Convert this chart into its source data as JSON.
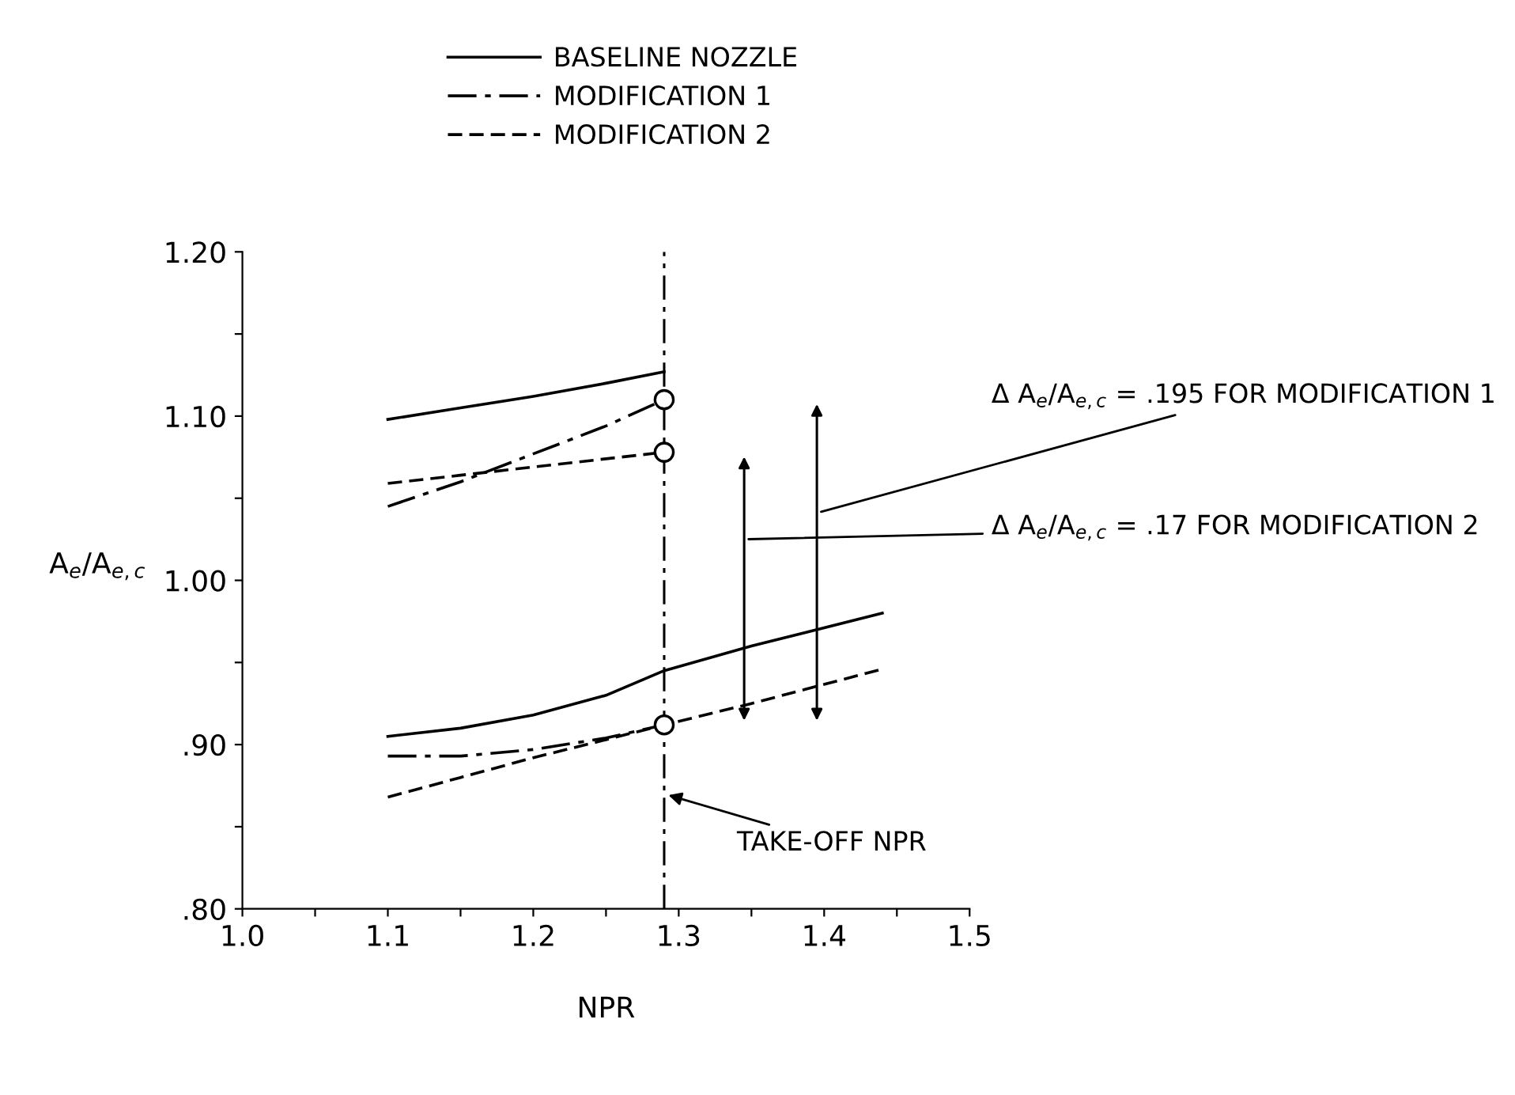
{
  "chart_data": {
    "type": "line",
    "xlabel": "NPR",
    "ylabel": "A$_{e}$/A$_{e,c}$",
    "x": [
      1.1,
      1.15,
      1.2,
      1.25,
      1.29
    ],
    "series": [
      {
        "name": "BASELINE NOZZLE",
        "color": "#000000",
        "line_style": "solid",
        "values": [
          1.098,
          1.105,
          1.112,
          1.12,
          1.127
        ]
      },
      {
        "color": "#000000",
        "line_style": "solid",
        "x": [
          1.1,
          1.15,
          1.2,
          1.25,
          1.29,
          1.35,
          1.44
        ],
        "values": [
          0.905,
          0.91,
          0.918,
          0.93,
          0.945,
          0.96,
          0.98
        ]
      },
      {
        "name": "MODIFICATION 1",
        "color": "#000000",
        "line_style": "dashdot",
        "values": [
          1.045,
          1.06,
          1.077,
          1.094,
          1.11
        ]
      },
      {
        "color": "#000000",
        "line_style": "dashdot",
        "values": [
          0.893,
          0.893,
          0.897,
          0.904,
          0.912
        ]
      },
      {
        "name": "MODIFICATION 2",
        "color": "#000000",
        "line_style": "dashed",
        "values": [
          1.059,
          1.064,
          1.069,
          1.074,
          1.078
        ]
      },
      {
        "color": "#000000",
        "line_style": "dashed",
        "x": [
          1.1,
          1.15,
          1.2,
          1.25,
          1.29,
          1.35,
          1.44
        ],
        "values": [
          0.868,
          0.88,
          0.892,
          0.903,
          0.912,
          0.925,
          0.946
        ]
      },
      {
        "type": "scatter",
        "marker": "circle",
        "color": "#000000",
        "x": [
          1.29,
          1.29,
          1.29
        ],
        "values": [
          1.11,
          1.078,
          0.912
        ]
      }
    ],
    "xlim": [
      1.0,
      1.5
    ],
    "ylim": [
      0.8,
      1.2
    ],
    "xticks": [
      {
        "value": 1.0,
        "label": "1.0"
      },
      {
        "value": 1.05,
        "label": null
      },
      1.1,
      {
        "value": 1.15,
        "label": null
      },
      1.2,
      {
        "value": 1.25,
        "label": null
      },
      1.3,
      {
        "value": 1.35,
        "label": null
      },
      1.4,
      {
        "value": 1.45,
        "label": null
      },
      1.5
    ],
    "yticks": [
      {
        "value": 0.8,
        "label": ".80"
      },
      {
        "value": 0.85,
        "label": null
      },
      {
        "value": 0.9,
        "label": ".90"
      },
      {
        "value": 0.95,
        "label": null
      },
      {
        "value": 1.0,
        "label": "1.00"
      },
      {
        "value": 1.05,
        "label": null
      },
      {
        "value": 1.1,
        "label": "1.10"
      },
      {
        "value": 1.15,
        "label": null
      },
      {
        "value": 1.2,
        "label": "1.20"
      }
    ],
    "ref_lines": [
      {
        "axis": "x",
        "value": 1.29,
        "label": "TAKE-OFF NPR",
        "line_style": "dashdot",
        "color": "#000000"
      }
    ],
    "annotations": [
      "Δ A$_{e}$/A$_{e,c}$ = .195 FOR MODIFICATION 1",
      "Δ A$_{e}$/A$_{e,c}$ = .17 FOR MODIFICATION 2"
    ],
    "legend": "top",
    "grid": false
  }
}
